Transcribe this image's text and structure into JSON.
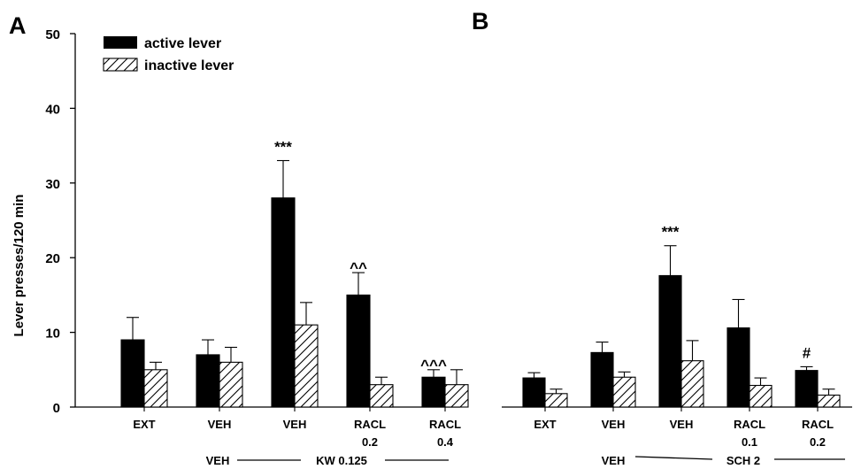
{
  "colors": {
    "active": "#000000",
    "inactive_fill": "#ffffff",
    "hatch": "#000000",
    "axis": "#000000"
  },
  "legend": {
    "active": "active lever",
    "inactive": "inactive lever"
  },
  "chart_data": [
    {
      "type": "bar",
      "panel_label": "A",
      "ylabel": "Lever presses/120 min",
      "ylim": [
        0,
        50
      ],
      "yticks": [
        0,
        10,
        20,
        30,
        40,
        50
      ],
      "categories": [
        {
          "line1": "EXT",
          "line2": ""
        },
        {
          "line1": "VEH",
          "line2": ""
        },
        {
          "line1": "VEH",
          "line2": ""
        },
        {
          "line1": "RACL",
          "line2": "0.2"
        },
        {
          "line1": "RACL",
          "line2": "0.4"
        }
      ],
      "series": [
        {
          "name": "active lever",
          "values": [
            9,
            7,
            28,
            15,
            4
          ],
          "errors": [
            3,
            2,
            5,
            3,
            1
          ]
        },
        {
          "name": "inactive lever",
          "values": [
            5,
            6,
            11,
            3,
            3
          ],
          "errors": [
            1,
            2,
            3,
            1,
            2
          ]
        }
      ],
      "annotations": [
        "",
        "",
        "***",
        "^^",
        "^^^"
      ],
      "group_labels": {
        "left": "VEH",
        "right": "KW 0.125"
      }
    },
    {
      "type": "bar",
      "panel_label": "B",
      "ylim": [
        0,
        50
      ],
      "categories": [
        {
          "line1": "EXT",
          "line2": ""
        },
        {
          "line1": "VEH",
          "line2": ""
        },
        {
          "line1": "VEH",
          "line2": ""
        },
        {
          "line1": "RACL",
          "line2": "0.1"
        },
        {
          "line1": "RACL",
          "line2": "0.2"
        }
      ],
      "series": [
        {
          "name": "active lever",
          "values": [
            3.9,
            7.3,
            17.6,
            10.6,
            4.9
          ],
          "errors": [
            0.7,
            1.4,
            4,
            3.8,
            0.5
          ]
        },
        {
          "name": "inactive lever",
          "values": [
            1.8,
            4,
            6.2,
            2.9,
            1.6
          ],
          "errors": [
            0.6,
            0.7,
            2.7,
            1,
            0.8
          ]
        }
      ],
      "annotations": [
        "",
        "",
        "***",
        "",
        "#"
      ],
      "group_labels": {
        "left": "VEH",
        "right": "SCH 2"
      }
    }
  ]
}
